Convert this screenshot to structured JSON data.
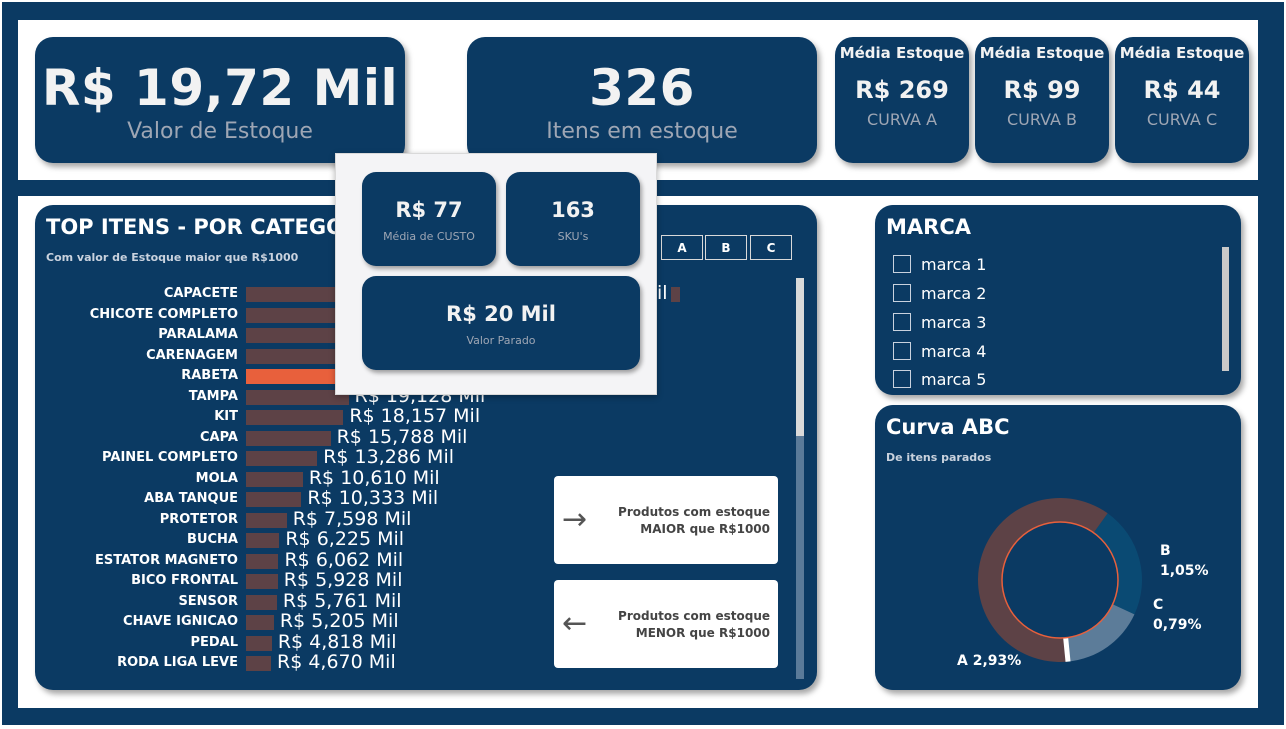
{
  "kpis": {
    "valor_estoque": {
      "value": "R$ 19,72 Mil",
      "label": "Valor de Estoque"
    },
    "itens_estoque": {
      "value": "326",
      "label": "Itens em estoque"
    },
    "curva_a": {
      "title": "Média Estoque",
      "value": "R$ 269",
      "label": "CURVA A"
    },
    "curva_b": {
      "title": "Média Estoque",
      "value": "R$ 99",
      "label": "CURVA B"
    },
    "curva_c": {
      "title": "Média Estoque",
      "value": "R$ 44",
      "label": "CURVA C"
    }
  },
  "top_itens": {
    "title": "TOP ITENS - POR CATEGO",
    "subtitle": "Com valor de Estoque maior que R$1000",
    "tabs": [
      "A",
      "B",
      "C"
    ],
    "highlight_color": "#e8603c",
    "bar_color": "#5d4246"
  },
  "chart_data": {
    "type": "bar",
    "orientation": "horizontal",
    "categories": [
      "CAPACETE",
      "CHICOTE COMPLETO",
      "PARALAMA",
      "CARENAGEM",
      "RABETA",
      "TAMPA",
      "KIT",
      "CAPA",
      "PAINEL COMPLETO",
      "MOLA",
      "ABA TANQUE",
      "PROTETOR",
      "BUCHA",
      "ESTATOR MAGNETO",
      "BICO FRONTAL",
      "SENSOR",
      "CHAVE IGNICAO",
      "PEDAL",
      "RODA LIGA LEVE"
    ],
    "values": [
      62.0,
      40.0,
      32.0,
      28.0,
      24.0,
      19.128,
      18.157,
      15.788,
      13.286,
      10.61,
      10.333,
      7.598,
      6.225,
      6.062,
      5.928,
      5.761,
      5.205,
      4.818,
      4.67
    ],
    "value_labels": [
      "",
      "",
      "",
      "",
      "",
      "R$ 19,128 Mil",
      "R$ 18,157 Mil",
      "R$ 15,788 Mil",
      "R$ 13,286 Mil",
      "R$ 10,610 Mil",
      "R$ 10,333 Mil",
      "R$ 7,598 Mil",
      "R$ 6,225 Mil",
      "R$ 6,062 Mil",
      "R$ 5,928 Mil",
      "R$ 5,761 Mil",
      "R$ 5,205 Mil",
      "R$ 4,818 Mil",
      "R$ 4,670 Mil"
    ],
    "highlighted_category": "RABETA",
    "partial_label_first": "il",
    "title": "TOP ITENS - POR CATEGO",
    "xlabel": "",
    "ylabel": ""
  },
  "nav_buttons": {
    "maior": {
      "line1": "Produtos com estoque",
      "line2": "MAIOR que R$1000",
      "icon": "arrow-right-icon"
    },
    "menor": {
      "line1": "Produtos com estoque",
      "line2": "MENOR que R$1000",
      "icon": "arrow-left-icon"
    }
  },
  "tooltip": {
    "media_custo": {
      "value": "R$ 77",
      "label": "Média de CUSTO"
    },
    "skus": {
      "value": "163",
      "label": "SKU's"
    },
    "valor_parado": {
      "value": "R$ 20 Mil",
      "label": "Valor Parado"
    }
  },
  "marca": {
    "title": "MARCA",
    "items": [
      "marca 1",
      "marca 2",
      "marca 3",
      "marca 4",
      "marca 5"
    ]
  },
  "curva_abc": {
    "title": "Curva ABC",
    "subtitle": "De itens parados",
    "slices": [
      {
        "name": "A",
        "label": "A 2,93%",
        "value": 2.93,
        "color": "#5d4246"
      },
      {
        "name": "B",
        "label_name": "B",
        "label_value": "1,05%",
        "value": 1.05,
        "color": "#0a4a73"
      },
      {
        "name": "C",
        "label_name": "C",
        "label_value": "0,79%",
        "value": 0.79,
        "color": "#5c7c99"
      }
    ],
    "ring_color": "#e8603c"
  }
}
